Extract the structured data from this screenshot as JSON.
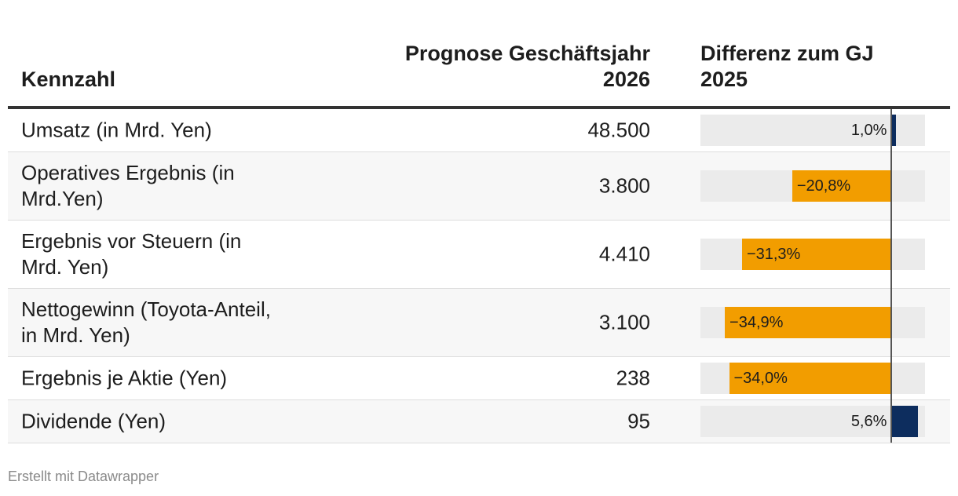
{
  "table": {
    "headers": {
      "kennzahl": "Kennzahl",
      "prognose": "Prognose Geschäftsjahr\n2026",
      "differenz": "Differenz zum GJ\n2025"
    }
  },
  "chart_data": {
    "type": "table",
    "columns": [
      "Kennzahl",
      "Prognose Geschäftsjahr 2026",
      "Differenz zum GJ 2025"
    ],
    "bar_range": [
      -40,
      7
    ],
    "colors": {
      "positive": "#0d2d5e",
      "negative": "#f29d00",
      "track": "#ebebeb"
    },
    "rows": [
      {
        "label": "Umsatz (in Mrd. Yen)",
        "value": "48.500",
        "diff": 1.0,
        "diff_label": "1,0%"
      },
      {
        "label": "Operatives Ergebnis (in Mrd.Yen)",
        "value": "3.800",
        "diff": -20.8,
        "diff_label": "−20,8%"
      },
      {
        "label": "Ergebnis vor Steuern (in Mrd. Yen)",
        "value": "4.410",
        "diff": -31.3,
        "diff_label": "−31,3%"
      },
      {
        "label": "Nettogewinn (Toyota-Anteil, in Mrd. Yen)",
        "value": "3.100",
        "diff": -34.9,
        "diff_label": "−34,9%"
      },
      {
        "label": "Ergebnis je Aktie (Yen)",
        "value": "238",
        "diff": -34.0,
        "diff_label": "−34,0%"
      },
      {
        "label": "Dividende (Yen)",
        "value": "95",
        "diff": 5.6,
        "diff_label": "5,6%"
      }
    ]
  },
  "footer": {
    "credit": "Erstellt mit Datawrapper"
  }
}
